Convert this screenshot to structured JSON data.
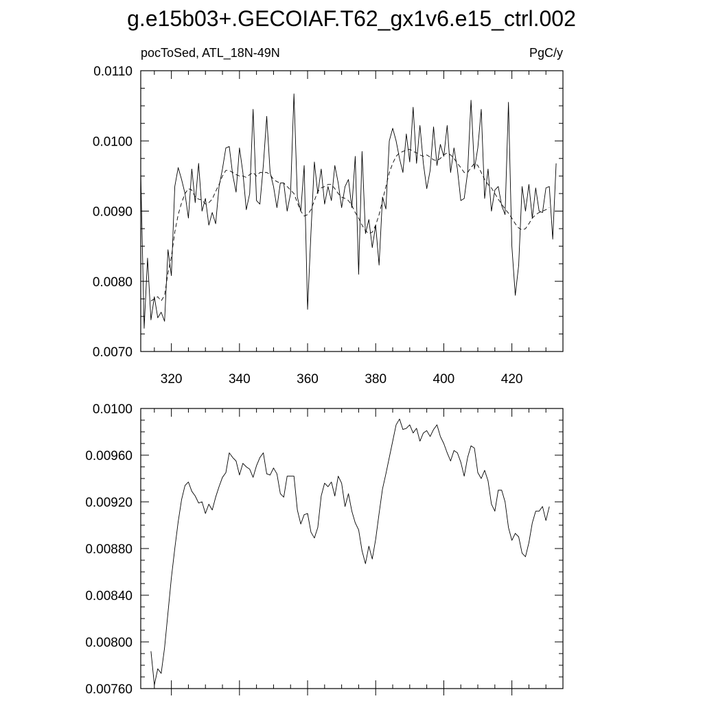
{
  "title": "g.e15b03+.GECOIAF.T62_gx1v6.e15_ctrl.002",
  "colors": {
    "line": "#000000",
    "background": "#ffffff"
  },
  "chart_data": [
    {
      "type": "line",
      "left_label": "pocToSed, ATL_18N-49N",
      "right_label": "PgC/y",
      "xlim": [
        311,
        435
      ],
      "ylim": [
        0.007,
        0.011
      ],
      "x_ticks": [
        "320",
        "340",
        "360",
        "380",
        "400",
        "420"
      ],
      "y_ticks": [
        "0.0070",
        "0.0080",
        "0.0090",
        "0.0100",
        "0.0110"
      ],
      "x_start": 311,
      "x_step": 1,
      "series": [
        {
          "style": "solid",
          "values": [
            0.00955,
            0.00733,
            0.00833,
            0.00745,
            0.00778,
            0.00748,
            0.00756,
            0.00743,
            0.00845,
            0.00808,
            0.00935,
            0.00962,
            0.00945,
            0.00925,
            0.0089,
            0.0096,
            0.00912,
            0.00968,
            0.009,
            0.00918,
            0.0088,
            0.00898,
            0.00882,
            0.00935,
            0.0096,
            0.0099,
            0.00992,
            0.00952,
            0.00927,
            0.0099,
            0.00955,
            0.00902,
            0.00925,
            0.01045,
            0.00915,
            0.0091,
            0.00965,
            0.01035,
            0.00955,
            0.00935,
            0.00905,
            0.0094,
            0.0094,
            0.009,
            0.00925,
            0.01067,
            0.0092,
            0.009,
            0.00965,
            0.0076,
            0.0087,
            0.0097,
            0.00925,
            0.0096,
            0.0091,
            0.00935,
            0.00915,
            0.00965,
            0.0094,
            0.00905,
            0.00935,
            0.00945,
            0.00905,
            0.00978,
            0.0081,
            0.00985,
            0.00868,
            0.00888,
            0.00848,
            0.0088,
            0.00823,
            0.0092,
            0.00903,
            0.01,
            0.01018,
            0.01,
            0.00975,
            0.00955,
            0.0101,
            0.0097,
            0.01048,
            0.00968,
            0.01022,
            0.00968,
            0.00932,
            0.00958,
            0.0102,
            0.00965,
            0.00995,
            0.00978,
            0.01022,
            0.00955,
            0.0099,
            0.0096,
            0.00915,
            0.00918,
            0.00955,
            0.01058,
            0.0096,
            0.0099,
            0.01045,
            0.00918,
            0.0096,
            0.009,
            0.0093,
            0.00935,
            0.00908,
            0.00895,
            0.01055,
            0.0085,
            0.0078,
            0.00823,
            0.00935,
            0.009,
            0.00938,
            0.0089,
            0.00933,
            0.009,
            0.00898,
            0.00933,
            0.00935,
            0.0086,
            0.00968
          ]
        },
        {
          "style": "dashed",
          "values": [
            null,
            null,
            null,
            0.00772,
            0.00775,
            0.00778,
            0.00772,
            0.0078,
            0.00812,
            0.00835,
            0.0087,
            0.00895,
            0.00912,
            0.00925,
            0.00932,
            0.0093,
            0.0092,
            0.00917,
            0.00916,
            0.0091,
            0.00912,
            0.00917,
            0.00928,
            0.00938,
            0.0095,
            0.00958,
            0.00958,
            0.00955,
            0.00952,
            0.0095,
            0.0095,
            0.00948,
            0.00952,
            0.00955,
            0.0095,
            0.00955,
            0.00955,
            0.00955,
            0.00952,
            0.00945,
            0.00942,
            0.0094,
            0.0094,
            0.00935,
            0.0093,
            0.00925,
            0.00912,
            0.009,
            0.00893,
            0.00895,
            0.00902,
            0.00915,
            0.00928,
            0.00933,
            0.00935,
            0.00938,
            0.00938,
            0.00932,
            0.00925,
            0.0092,
            0.00918,
            0.00915,
            0.00908,
            0.00898,
            0.0089,
            0.0088,
            0.00872,
            0.00868,
            0.0087,
            0.0088,
            0.00895,
            0.00915,
            0.00935,
            0.00955,
            0.00968,
            0.00978,
            0.00983,
            0.00985,
            0.00987,
            0.00988,
            0.00985,
            0.00983,
            0.0098,
            0.00978,
            0.0098,
            0.00977,
            0.00973,
            0.00972,
            0.00975,
            0.0098,
            0.00983,
            0.0098,
            0.00975,
            0.00968,
            0.00962,
            0.00955,
            0.00955,
            0.00962,
            0.00968,
            0.00965,
            0.00955,
            0.00945,
            0.00938,
            0.00933,
            0.00925,
            0.00917,
            0.0091,
            0.00903,
            0.00897,
            0.0089,
            0.00882,
            0.00876,
            0.00873,
            0.00875,
            0.00882,
            0.0089,
            0.00895,
            0.00898,
            0.009,
            0.00902,
            0.00905,
            null,
            null,
            null
          ]
        }
      ]
    },
    {
      "type": "line",
      "xlim": [
        311,
        435
      ],
      "ylim": [
        0.0076,
        0.01
      ],
      "x_ticks": [
        "320",
        "340",
        "360",
        "380",
        "400",
        "420"
      ],
      "y_ticks": [
        "0.00760",
        "0.00800",
        "0.00840",
        "0.00880",
        "0.00920",
        "0.00960",
        "0.0100"
      ],
      "x_start": 314,
      "x_step": 1,
      "series": [
        {
          "style": "solid",
          "values": [
            0.00792,
            0.00763,
            0.00777,
            0.00773,
            0.00795,
            0.00825,
            0.00855,
            0.0088,
            0.00903,
            0.00922,
            0.00934,
            0.00937,
            0.00929,
            0.00925,
            0.00919,
            0.0092,
            0.0091,
            0.00918,
            0.00913,
            0.00924,
            0.00933,
            0.00941,
            0.00945,
            0.00962,
            0.00958,
            0.00955,
            0.00943,
            0.00953,
            0.0095,
            0.00948,
            0.00941,
            0.00951,
            0.00958,
            0.00962,
            0.00944,
            0.00943,
            0.00949,
            0.00944,
            0.00927,
            0.00924,
            0.00942,
            0.00942,
            0.00942,
            0.00913,
            0.00901,
            0.00909,
            0.0091,
            0.00894,
            0.00889,
            0.00898,
            0.00925,
            0.00936,
            0.00933,
            0.00937,
            0.00925,
            0.00942,
            0.00936,
            0.00916,
            0.00927,
            0.00912,
            0.00902,
            0.00896,
            0.00878,
            0.00867,
            0.00882,
            0.00871,
            0.00888,
            0.0091,
            0.00931,
            0.00944,
            0.00958,
            0.00972,
            0.00986,
            0.00991,
            0.00982,
            0.00983,
            0.00986,
            0.00979,
            0.00983,
            0.00972,
            0.00979,
            0.00981,
            0.00976,
            0.00982,
            0.00986,
            0.00976,
            0.0097,
            0.00962,
            0.00955,
            0.00964,
            0.00962,
            0.00954,
            0.00942,
            0.00958,
            0.00968,
            0.00966,
            0.00945,
            0.0094,
            0.00947,
            0.00938,
            0.00918,
            0.00912,
            0.0093,
            0.0093,
            0.0092,
            0.00898,
            0.00887,
            0.00893,
            0.0089,
            0.00876,
            0.00873,
            0.00885,
            0.00902,
            0.00912,
            0.00912,
            0.00916,
            0.00904,
            0.00916
          ]
        }
      ]
    }
  ]
}
